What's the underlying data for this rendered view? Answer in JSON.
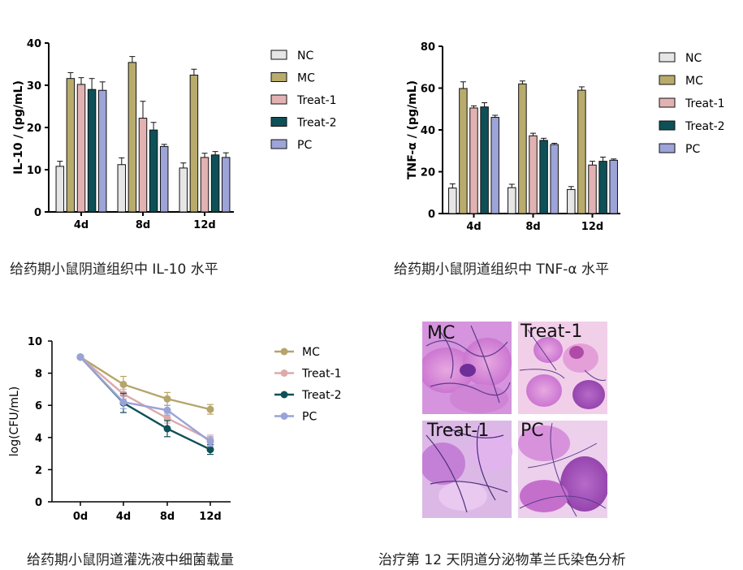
{
  "colors": {
    "NC": "#e6e6e6",
    "MC": "#b9ab6b",
    "Treat-1": "#e2b2b2",
    "Treat-2": "#0e5058",
    "PC": "#9da4d8"
  },
  "line_colors": {
    "MC": "#b5a56b",
    "Treat-1": "#dcaaaa",
    "Treat-2": "#0f5058",
    "PC": "#9aa3d8"
  },
  "chart_data": [
    {
      "type": "bar",
      "ylabel": "IL-10 / (pg/mL)",
      "ylim": [
        0,
        40
      ],
      "yticks": [
        0,
        10,
        20,
        30,
        40
      ],
      "categories": [
        "4d",
        "8d",
        "12d"
      ],
      "series": [
        {
          "name": "NC",
          "values": [
            10.8,
            11.2,
            10.4
          ],
          "errors": [
            1.2,
            1.6,
            1.2
          ]
        },
        {
          "name": "MC",
          "values": [
            31.6,
            35.4,
            32.4
          ],
          "errors": [
            1.4,
            1.4,
            1.4
          ]
        },
        {
          "name": "Treat-1",
          "values": [
            30.2,
            22.2,
            12.9
          ],
          "errors": [
            1.6,
            4.0,
            1.0
          ]
        },
        {
          "name": "Treat-2",
          "values": [
            29.0,
            19.4,
            13.5
          ],
          "errors": [
            2.6,
            1.8,
            0.8
          ]
        },
        {
          "name": "PC",
          "values": [
            28.8,
            15.5,
            12.9
          ],
          "errors": [
            2.0,
            0.5,
            1.1
          ]
        }
      ],
      "caption": "给药期小鼠阴道组织中 IL-10 水平"
    },
    {
      "type": "bar",
      "ylabel": "TNF-α / (pg/mL)",
      "ylim": [
        0,
        80
      ],
      "yticks": [
        0,
        20,
        40,
        60,
        80
      ],
      "categories": [
        "4d",
        "8d",
        "12d"
      ],
      "series": [
        {
          "name": "NC",
          "values": [
            12.2,
            12.4,
            11.5
          ],
          "errors": [
            2.0,
            1.6,
            1.4
          ]
        },
        {
          "name": "MC",
          "values": [
            59.8,
            62.0,
            59.0
          ],
          "errors": [
            3.2,
            1.4,
            1.6
          ]
        },
        {
          "name": "Treat-1",
          "values": [
            50.5,
            37.2,
            23.2
          ],
          "errors": [
            1.0,
            1.2,
            1.8
          ]
        },
        {
          "name": "Treat-2",
          "values": [
            51.0,
            35.0,
            25.0
          ],
          "errors": [
            2.0,
            1.0,
            2.0
          ]
        },
        {
          "name": "PC",
          "values": [
            46.0,
            33.0,
            25.5
          ],
          "errors": [
            1.0,
            0.6,
            0.6
          ]
        }
      ],
      "caption": "给药期小鼠阴道组织中 TNF-α 水平"
    },
    {
      "type": "line",
      "ylabel": "log(CFU/mL)",
      "ylim": [
        0,
        10
      ],
      "yticks": [
        0,
        2,
        4,
        6,
        8,
        10
      ],
      "x": [
        "0d",
        "4d",
        "8d",
        "12d"
      ],
      "series": [
        {
          "name": "MC",
          "values": [
            9.0,
            7.3,
            6.4,
            5.75
          ],
          "errors": [
            0,
            0.5,
            0.4,
            0.3
          ]
        },
        {
          "name": "Treat-1",
          "values": [
            9.0,
            6.7,
            5.2,
            3.85
          ],
          "errors": [
            0,
            0.3,
            0.3,
            0.3
          ]
        },
        {
          "name": "Treat-2",
          "values": [
            9.0,
            6.15,
            4.55,
            3.25
          ],
          "errors": [
            0,
            0.6,
            0.5,
            0.3
          ]
        },
        {
          "name": "PC",
          "values": [
            9.0,
            6.2,
            5.7,
            3.75
          ],
          "errors": [
            0,
            0.4,
            0.3,
            0.3
          ]
        }
      ],
      "caption": "给药期小鼠阴道灌洗液中细菌载量"
    }
  ],
  "micrographs": {
    "panels": [
      "MC",
      "Treat-1",
      "Treat-1",
      "PC"
    ],
    "caption": "治疗第 12 天阴道分泌物革兰氏染色分析"
  }
}
